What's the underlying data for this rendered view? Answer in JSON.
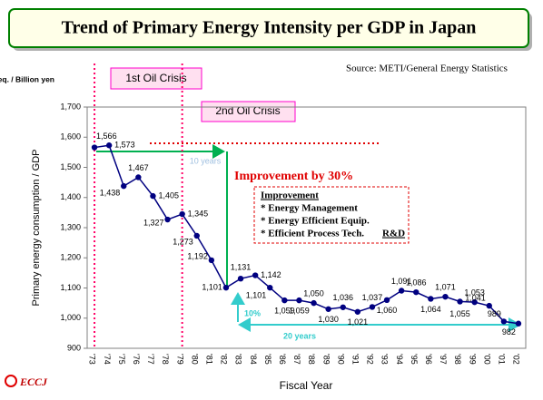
{
  "chart_data": {
    "type": "line",
    "title": "Trend of Primary Energy Intensity per GDP in Japan",
    "subtitle": "Source: METI/General Energy Statistics",
    "y_unit": "Ton oil eq. / Billion yen",
    "ylabel": "Primary energy consumption / GDP",
    "xlabel": "Fiscal Year",
    "categories": [
      "'73",
      "'74",
      "'75",
      "'76",
      "'77",
      "'78",
      "'79",
      "'80",
      "'81",
      "'82",
      "'83",
      "'84",
      "'85",
      "'86",
      "'87",
      "'88",
      "'89",
      "'90",
      "'91",
      "'92",
      "'93",
      "'94",
      "'95",
      "'96",
      "'97",
      "'98",
      "'99",
      "'00",
      "'01",
      "'02"
    ],
    "series": [
      {
        "name": "Primary energy intensity",
        "color": "#000080",
        "values": [
          1566,
          1573,
          1438,
          1467,
          1405,
          1327,
          1345,
          1273,
          1192,
          1101,
          1131,
          1142,
          1101,
          1059,
          1059,
          1050,
          1030,
          1036,
          1021,
          1037,
          1060,
          1091,
          1086,
          1064,
          1071,
          1055,
          1053,
          1041,
          989,
          982
        ],
        "value_labels": [
          "1,566",
          "1,573",
          "1,438",
          "1,467",
          "1,405",
          "1,327",
          "1,345",
          "1,273",
          "1,192",
          "1,101",
          "1,131",
          "1,142",
          "1,101",
          "1,059",
          "1,059",
          "1,050",
          "1,030",
          "1,036",
          "1,021",
          "1,037",
          "1,060",
          "1,091",
          "1,086",
          "1,064",
          "1,071",
          "1,055",
          "1,053",
          "1,041",
          "989",
          "982"
        ]
      }
    ],
    "ylim": [
      900,
      1700
    ],
    "yticks": [
      900,
      {
        "value": 1000,
        "label": "1,000"
      },
      {
        "value": 1100,
        "label": "1,100"
      },
      {
        "value": 1200,
        "label": "1,200"
      },
      {
        "value": 1300,
        "label": "1,300"
      },
      {
        "value": 1400,
        "label": "1,400"
      },
      {
        "value": 1500,
        "label": "1,500"
      },
      {
        "value": 1600,
        "label": "1,600"
      },
      {
        "value": 1700,
        "label": "1,700"
      }
    ],
    "annotations": {
      "crisis1": "1st Oil Crisis",
      "crisis2": "2nd Oil Crisis",
      "improvement": "Improvement by 30%",
      "span10": "10 years",
      "span20": "20 years",
      "pct10": "10%",
      "box_title": "Improvement",
      "box_items": [
        "* Energy Management",
        "* Energy Efficient Equip.",
        "* Efficient Process Tech."
      ],
      "box_rd": "R&D"
    },
    "logo": "ECCJ"
  }
}
